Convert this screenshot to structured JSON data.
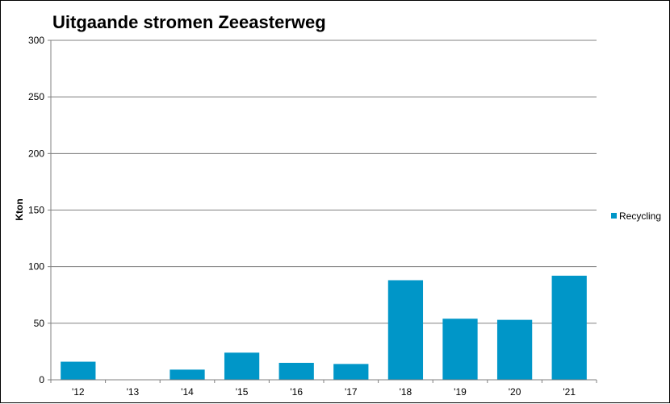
{
  "chart_data": {
    "type": "bar",
    "title": "Uitgaande stromen Zeeasterweg",
    "ylabel": "Kton",
    "xlabel": "",
    "ylim": [
      0,
      300
    ],
    "yticks": [
      0,
      50,
      100,
      150,
      200,
      250,
      300
    ],
    "grid": true,
    "legend_position": "right",
    "categories": [
      "'12",
      "'13",
      "'14",
      "'15",
      "'16",
      "'17",
      "'18",
      "'19",
      "'20",
      "'21"
    ],
    "series": [
      {
        "name": "Recycling",
        "color": "#0096c8",
        "values": [
          16,
          0,
          9,
          24,
          15,
          14,
          88,
          54,
          53,
          92
        ]
      }
    ]
  }
}
